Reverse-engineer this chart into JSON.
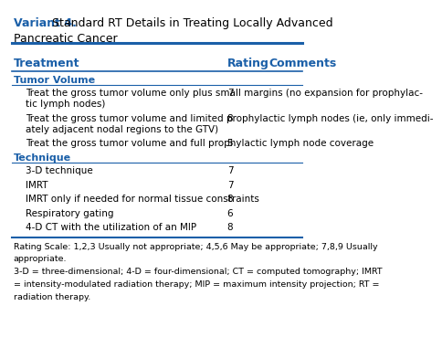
{
  "title_bold": "Variant 4.",
  "title_normal": " Standard RT Details in Treating Locally Advanced",
  "title_line2": "Pancreatic Cancer",
  "title_color": "#1a5fa8",
  "col_headers": [
    "Treatment",
    "Rating",
    "Comments"
  ],
  "col_header_color": "#1a5fa8",
  "sections": [
    {
      "section_name": "Tumor Volume",
      "section_color": "#1a5fa8",
      "rows": [
        {
          "text": "Treat the gross tumor volume only plus small margins (no expansion for prophylac-\ntic lymph nodes)",
          "rating": "7"
        },
        {
          "text": "Treat the gross tumor volume and limited prophylactic lymph nodes (ie, only immedi-\nately adjacent nodal regions to the GTV)",
          "rating": "8"
        },
        {
          "text": "Treat the gross tumor volume and full prophylactic lymph node coverage",
          "rating": "5"
        }
      ]
    },
    {
      "section_name": "Technique",
      "section_color": "#1a5fa8",
      "rows": [
        {
          "text": "3-D technique",
          "rating": "7"
        },
        {
          "text": "IMRT",
          "rating": "7"
        },
        {
          "text": "IMRT only if needed for normal tissue constraints",
          "rating": "8"
        },
        {
          "text": "Respiratory gating",
          "rating": "6"
        },
        {
          "text": "4-D CT with the utilization of an MIP",
          "rating": "8"
        }
      ]
    }
  ],
  "footnote_lines": [
    "Rating Scale: 1,2,3 Usually not appropriate; 4,5,6 May be appropriate; 7,8,9 Usually",
    "appropriate.",
    "3-D = three-dimensional; 4-D = four-dimensional; CT = computed tomography; IMRT",
    "= intensity-modulated radiation therapy; MIP = maximum intensity projection; RT =",
    "radiation therapy."
  ],
  "bg_color": "#ffffff",
  "line_color": "#1a5fa8",
  "text_color": "#000000",
  "body_fontsize": 7.5,
  "header_fontsize": 9.0,
  "title_fontsize": 9.0,
  "footnote_fontsize": 6.8
}
